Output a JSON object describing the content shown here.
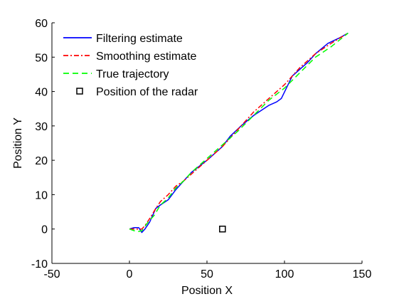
{
  "chart_data": {
    "type": "line",
    "title": "",
    "xlabel": "Position X",
    "ylabel": "Position Y",
    "xlim": [
      -50,
      150
    ],
    "ylim": [
      -10,
      60
    ],
    "xticks": [
      -50,
      0,
      50,
      100,
      150
    ],
    "yticks": [
      -10,
      0,
      10,
      20,
      30,
      40,
      50,
      60
    ],
    "xtick_labels": [
      "-50",
      "0",
      "50",
      "100",
      "150"
    ],
    "ytick_labels": [
      "-10",
      "0",
      "10",
      "20",
      "30",
      "40",
      "50",
      "60"
    ],
    "grid": false,
    "legend_position": "top-left",
    "series": [
      {
        "name": "Filtering estimate",
        "color": "#0000ff",
        "style": "solid",
        "x": [
          0,
          3,
          6,
          8,
          10,
          13,
          17,
          20,
          25,
          30,
          35,
          40,
          50,
          60,
          65,
          72,
          80,
          85,
          90,
          95,
          98,
          105,
          115,
          120,
          128,
          135,
          141
        ],
        "y": [
          0,
          0.4,
          0.4,
          -1,
          0,
          2,
          6,
          7,
          8.5,
          11.5,
          14,
          16.5,
          20,
          24,
          27,
          30,
          33,
          34.5,
          36,
          37,
          38,
          44.5,
          48.5,
          51,
          54,
          55.5,
          57
        ]
      },
      {
        "name": "Smoothing estimate",
        "color": "#ff0000",
        "style": "dashdot",
        "x": [
          0,
          3,
          5,
          8,
          10,
          13,
          17,
          20,
          25,
          30,
          35,
          40,
          50,
          60,
          70,
          80,
          90,
          100,
          110,
          120,
          130,
          141
        ],
        "y": [
          0,
          0,
          0,
          0,
          1,
          3,
          6,
          8,
          10,
          12.5,
          14,
          16,
          20,
          24,
          29,
          34,
          38,
          42,
          47,
          51,
          54,
          57
        ]
      },
      {
        "name": "True trajectory",
        "color": "#00ff00",
        "style": "dashed",
        "x": [
          0,
          5,
          8,
          12,
          16,
          20,
          25,
          30,
          35,
          40,
          50,
          60,
          70,
          80,
          90,
          100,
          110,
          120,
          130,
          141
        ],
        "y": [
          0,
          -0.8,
          -0.5,
          2,
          4,
          7,
          9,
          12,
          14,
          16.5,
          20.5,
          24.5,
          28.5,
          33,
          37.5,
          41,
          45.5,
          50,
          53,
          57
        ]
      },
      {
        "name": "Position of the radar",
        "color": "#000000",
        "style": "square-marker",
        "x": [
          60
        ],
        "y": [
          0
        ]
      }
    ]
  }
}
